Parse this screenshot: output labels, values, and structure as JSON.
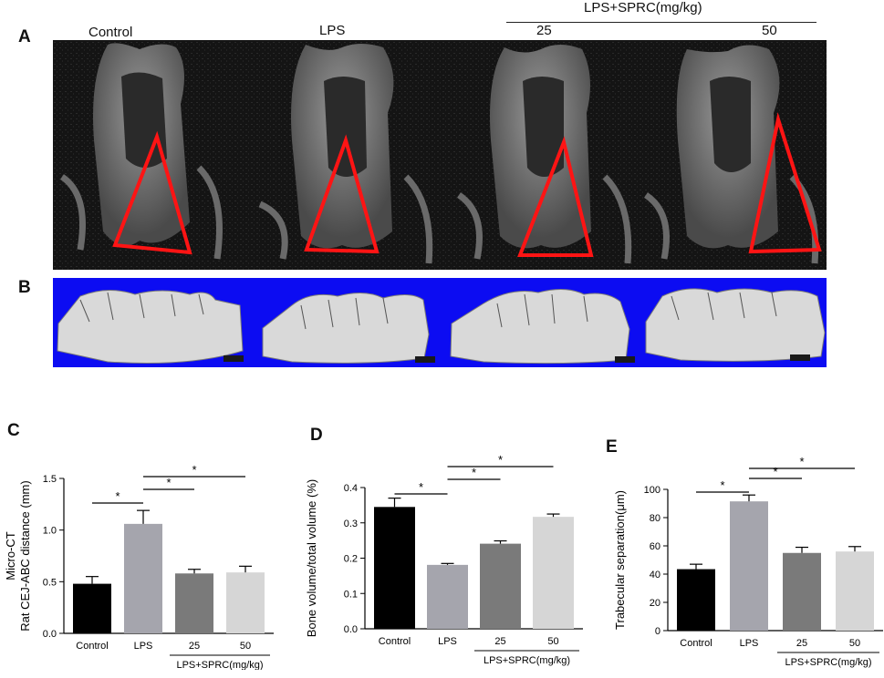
{
  "panels": {
    "a": "A",
    "b": "B",
    "c": "C",
    "d": "D",
    "e": "E"
  },
  "groups": {
    "control": "Control",
    "lps": "LPS",
    "sprc_header": "LPS+SPRC(mg/kg)",
    "dose_25": "25",
    "dose_50": "50"
  },
  "colors": {
    "bar_control": "#000000",
    "bar_lps": "#a5a5ad",
    "bar_25": "#7a7a7a",
    "bar_50": "#d6d6d6",
    "triangle": "#ff1414",
    "render_background": "#0c0cf2"
  },
  "chart_data": [
    {
      "type": "bar",
      "panel": "C",
      "title": "Micro-CT",
      "xlabel": "",
      "ylabel": "Rat CEJ-ABC distance (mm)",
      "categories": [
        "Control",
        "LPS",
        "25",
        "50"
      ],
      "group_label": "LPS+SPRC(mg/kg)",
      "values": [
        0.48,
        1.06,
        0.58,
        0.59
      ],
      "errors": [
        0.07,
        0.13,
        0.04,
        0.06
      ],
      "ylim": [
        0,
        1.5
      ],
      "yticks": [
        "0.0",
        "0.5",
        "1.0",
        "1.5"
      ],
      "significance": [
        {
          "from": 0,
          "to": 1,
          "label": "*"
        },
        {
          "from": 1,
          "to": 2,
          "label": "*"
        },
        {
          "from": 1,
          "to": 3,
          "label": "*"
        }
      ]
    },
    {
      "type": "bar",
      "panel": "D",
      "xlabel": "",
      "ylabel": "Bone volume/total volume (%)",
      "categories": [
        "Control",
        "LPS",
        "25",
        "50"
      ],
      "group_label": "LPS+SPRC(mg/kg)",
      "values": [
        0.345,
        0.181,
        0.241,
        0.317
      ],
      "errors": [
        0.025,
        0.004,
        0.008,
        0.008
      ],
      "ylim": [
        0,
        0.4
      ],
      "yticks": [
        "0.0",
        "0.1",
        "0.2",
        "0.3",
        "0.4"
      ],
      "significance": [
        {
          "from": 0,
          "to": 1,
          "label": "*"
        },
        {
          "from": 1,
          "to": 2,
          "label": "*"
        },
        {
          "from": 1,
          "to": 3,
          "label": "*"
        }
      ]
    },
    {
      "type": "bar",
      "panel": "E",
      "xlabel": "",
      "ylabel": "Trabecular separation(μm)",
      "categories": [
        "Control",
        "LPS",
        "25",
        "50"
      ],
      "group_label": "LPS+SPRC(mg/kg)",
      "values": [
        43.5,
        91.5,
        55,
        56
      ],
      "errors": [
        3.5,
        4.5,
        4,
        3.5
      ],
      "ylim": [
        0,
        100
      ],
      "yticks": [
        "0",
        "20",
        "40",
        "60",
        "80",
        "100"
      ],
      "significance": [
        {
          "from": 0,
          "to": 1,
          "label": "*"
        },
        {
          "from": 1,
          "to": 2,
          "label": "*"
        },
        {
          "from": 1,
          "to": 3,
          "label": "*"
        }
      ]
    }
  ]
}
